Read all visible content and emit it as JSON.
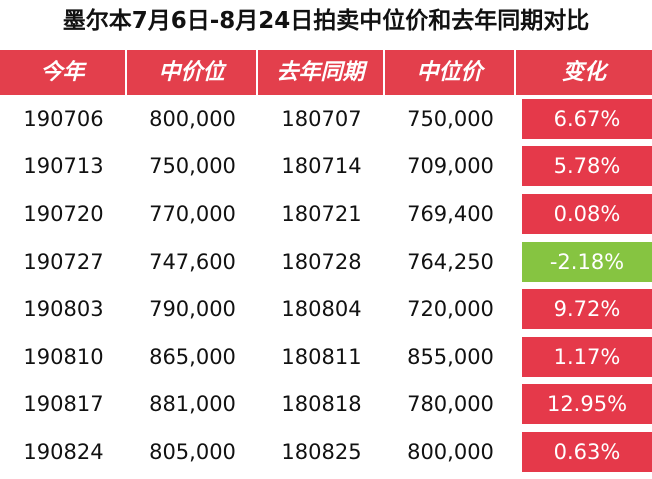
{
  "title": "墨尔本7月6日-8月24日拍卖中位价和去年同期对比",
  "colors": {
    "header_bg": "#e33f4c",
    "increase_bg": "#e5394a",
    "decrease_bg": "#86c441"
  },
  "headers": [
    "今年",
    "中价位",
    "去年同期",
    "中位价",
    "变化"
  ],
  "rows": [
    {
      "this_year": "190706",
      "median_this": "800,000",
      "last_year": "180707",
      "median_last": "750,000",
      "change": "6.67%",
      "direction": "up"
    },
    {
      "this_year": "190713",
      "median_this": "750,000",
      "last_year": "180714",
      "median_last": "709,000",
      "change": "5.78%",
      "direction": "up"
    },
    {
      "this_year": "190720",
      "median_this": "770,000",
      "last_year": "180721",
      "median_last": "769,400",
      "change": "0.08%",
      "direction": "up"
    },
    {
      "this_year": "190727",
      "median_this": "747,600",
      "last_year": "180728",
      "median_last": "764,250",
      "change": "-2.18%",
      "direction": "down"
    },
    {
      "this_year": "190803",
      "median_this": "790,000",
      "last_year": "180804",
      "median_last": "720,000",
      "change": "9.72%",
      "direction": "up"
    },
    {
      "this_year": "190810",
      "median_this": "865,000",
      "last_year": "180811",
      "median_last": "855,000",
      "change": "1.17%",
      "direction": "up"
    },
    {
      "this_year": "190817",
      "median_this": "881,000",
      "last_year": "180818",
      "median_last": "780,000",
      "change": "12.95%",
      "direction": "up"
    },
    {
      "this_year": "190824",
      "median_this": "805,000",
      "last_year": "180825",
      "median_last": "800,000",
      "change": "0.63%",
      "direction": "up"
    }
  ]
}
